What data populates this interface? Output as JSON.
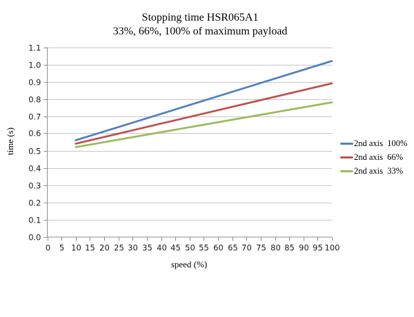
{
  "chart_data": {
    "type": "line",
    "title": "Stopping time HSR065A1",
    "subtitle": "33%, 66%, 100% of maximum payload",
    "xlabel": "speed (%)",
    "ylabel": "time (s)",
    "xlim": [
      0,
      100
    ],
    "ylim": [
      0.0,
      1.1
    ],
    "x_tick_step": 5,
    "y_tick_step": 0.1,
    "x_tick_labels": [
      "0",
      "5",
      "10",
      "15",
      "20",
      "25",
      "30",
      "35",
      "40",
      "45",
      "50",
      "55",
      "60",
      "65",
      "70",
      "75",
      "80",
      "85",
      "90",
      "95",
      "100"
    ],
    "y_tick_labels": [
      "0.0",
      "0.1",
      "0.2",
      "0.3",
      "0.4",
      "0.5",
      "0.6",
      "0.7",
      "0.8",
      "0.9",
      "1.0",
      "1.1"
    ],
    "grid": "horizontal",
    "legend_position": "right",
    "colors": {
      "axis": "#8c8c8c",
      "gridline": "#c6c6c6",
      "title_text": "#000000",
      "tick_text": "#1a1a1a",
      "background": "#ffffff"
    },
    "series": [
      {
        "name": "2nd axis  100%",
        "color": "#4f81bd",
        "points": [
          [
            10,
            0.56
          ],
          [
            100,
            1.02
          ]
        ]
      },
      {
        "name": "2nd axis  66%",
        "color": "#c0504d",
        "points": [
          [
            10,
            0.54
          ],
          [
            100,
            0.89
          ]
        ]
      },
      {
        "name": "2nd axis  33%",
        "color": "#9bbb59",
        "points": [
          [
            10,
            0.52
          ],
          [
            100,
            0.78
          ]
        ]
      }
    ]
  }
}
